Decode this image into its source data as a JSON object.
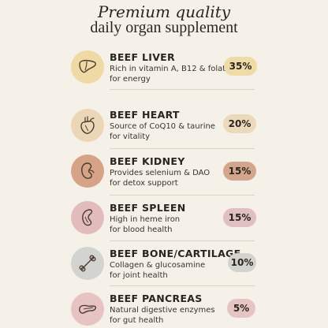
{
  "header": {
    "line1": "Premium quality",
    "line2": "daily organ supplement"
  },
  "items": [
    {
      "title": "BEEF LIVER",
      "desc1": "Rich in vitamin A, B12 & folate",
      "desc2": "for energy",
      "percent": "35%",
      "icon": "liver-icon",
      "circle_color": "#efd9a4",
      "badge_color": "#eedba8"
    },
    {
      "title": "BEEF HEART",
      "desc1": "Source of CoQ10 & taurine",
      "desc2": "for vitality",
      "percent": "20%",
      "icon": "heart-organ-icon",
      "circle_color": "#ecd6b8",
      "badge_color": "#ecd9bc"
    },
    {
      "title": "BEEF KIDNEY",
      "desc1": "Provides selenium & DAO",
      "desc2": "for detox support",
      "percent": "15%",
      "icon": "kidney-icon",
      "circle_color": "#d6a387",
      "badge_color": "#d3a68b"
    },
    {
      "title": "BEEF SPLEEN",
      "desc1": "High in heme iron",
      "desc2": "for blood health",
      "percent": "15%",
      "icon": "spleen-icon",
      "circle_color": "#e2bcbd",
      "badge_color": "#e0bfc0"
    },
    {
      "title": "BEEF BONE/CARTILAGE",
      "desc1": "Collagen & glucosamine",
      "desc2": "for joint health",
      "percent": "10%",
      "icon": "bone-icon",
      "circle_color": "#d3d3d0",
      "badge_color": "#d2d2cf"
    },
    {
      "title": "BEEF PANCREAS",
      "desc1": "Natural digestive enzymes",
      "desc2": "for gut health",
      "percent": "5%",
      "icon": "pancreas-icon",
      "circle_color": "#e8c3c3",
      "badge_color": "#e6c4c4"
    }
  ]
}
